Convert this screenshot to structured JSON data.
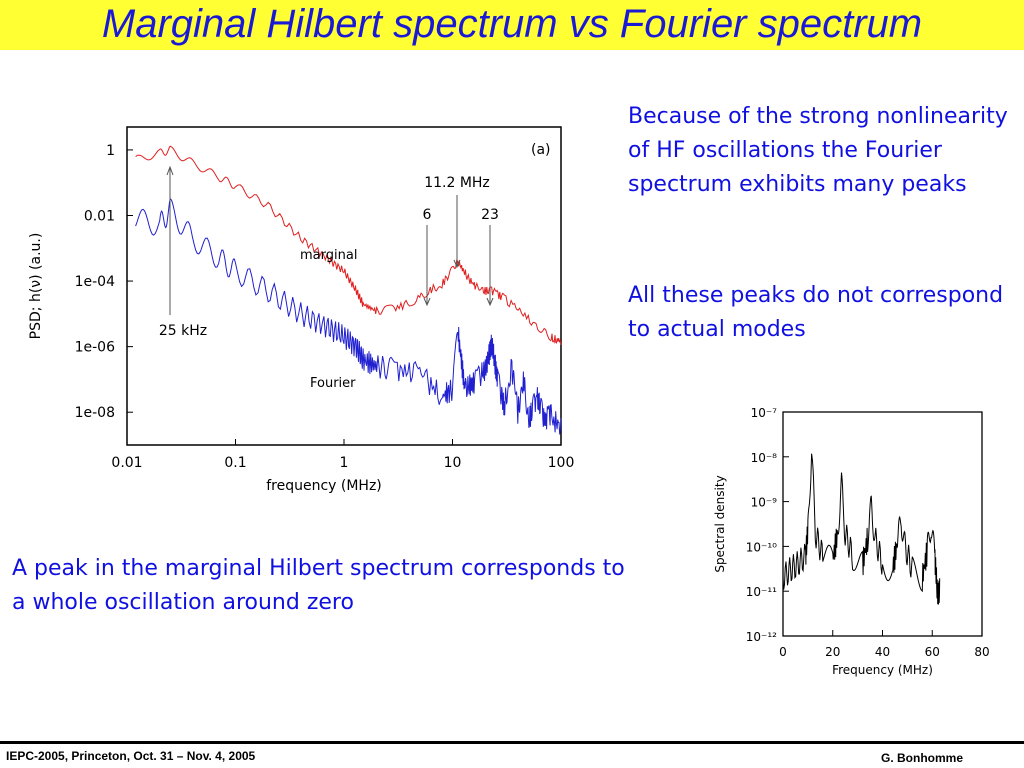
{
  "title": "Marginal Hilbert spectrum vs Fourier spectrum",
  "body": {
    "para1": "Because of the strong nonlinearity of HF oscillations the Fourier spectrum exhibits many peaks",
    "para2": "All these peaks do not correspond to actual modes",
    "para3": "A peak in the marginal Hilbert spectrum corresponds to a whole oscillation around zero"
  },
  "footer": {
    "left": "IEPC-2005, Princeton, Oct. 31 – Nov. 4, 2005",
    "right": "G. Bonhomme"
  },
  "colors": {
    "title_bg": "#ffff33",
    "title_text": "#1a1ad6",
    "body_text": "#1010e0",
    "marginal": "#e02020",
    "fourier": "#2020d0"
  },
  "chart_data": [
    {
      "type": "line",
      "panel_label": "(a)",
      "xlabel": "frequency (MHz)",
      "ylabel": "PSD;  h(ν)  (a.u.)",
      "xscale": "log",
      "yscale": "log",
      "xlim": [
        0.01,
        100
      ],
      "ylim": [
        1e-09,
        5
      ],
      "xticks": [
        "0.01",
        "0.1",
        "1",
        "10",
        "100"
      ],
      "yticks": [
        "1",
        "0.01",
        "1e-04",
        "1e-06",
        "1e-08"
      ],
      "annotations": [
        "11.2 MHz",
        "6",
        "23",
        "25 kHz"
      ],
      "series": [
        {
          "name": "marginal",
          "color": "#e02020",
          "x": [
            0.012,
            0.02,
            0.025,
            0.04,
            0.07,
            0.1,
            0.2,
            0.4,
            0.7,
            1.0,
            1.3,
            1.5,
            2,
            3,
            5,
            6,
            8,
            11.2,
            14,
            18,
            23,
            30,
            50,
            80,
            100
          ],
          "y": [
            0.5,
            0.8,
            1.0,
            0.4,
            0.15,
            0.08,
            0.02,
            0.002,
            0.0005,
            0.0002,
            5e-05,
            2e-05,
            1.2e-05,
            1.5e-05,
            3e-05,
            5e-05,
            8e-05,
            0.0004,
            0.00012,
            5e-05,
            5e-05,
            3e-05,
            7e-06,
            2e-06,
            1.5e-06
          ]
        },
        {
          "name": "Fourier",
          "color": "#2020d0",
          "x": [
            0.012,
            0.02,
            0.025,
            0.04,
            0.07,
            0.1,
            0.2,
            0.4,
            0.7,
            1.0,
            1.3,
            1.5,
            2,
            3,
            5,
            8,
            10,
            11.2,
            13,
            16,
            20,
            23,
            26,
            30,
            35,
            40,
            45,
            50,
            60,
            70,
            80,
            100
          ],
          "y": [
            0.008,
            0.005,
            0.015,
            0.002,
            0.0005,
            0.0002,
            5e-05,
            1e-05,
            4e-06,
            2e-06,
            1e-06,
            4e-07,
            2.5e-07,
            2e-07,
            1.5e-07,
            3e-08,
            5e-08,
            3e-06,
            5e-08,
            8e-08,
            2e-07,
            1.2e-06,
            1e-07,
            1.5e-08,
            2.5e-07,
            1e-08,
            1.2e-07,
            5e-09,
            3e-08,
            6e-09,
            8e-09,
            3e-09
          ]
        }
      ]
    },
    {
      "type": "line",
      "xlabel": "Frequency (MHz)",
      "ylabel": "Spectral  density",
      "yscale": "log",
      "xlim": [
        0,
        80
      ],
      "ylim": [
        1e-12,
        1e-07
      ],
      "xticks": [
        "0",
        "20",
        "40",
        "60",
        "80"
      ],
      "yticks": [
        "10⁻⁷",
        "10⁻⁸",
        "10⁻⁹",
        "10⁻¹⁰",
        "10⁻¹¹",
        "10⁻¹²"
      ],
      "series": [
        {
          "color": "#000000",
          "x": [
            0,
            3,
            6,
            9,
            10,
            11.5,
            13,
            16,
            20,
            22,
            23.5,
            25,
            28,
            32,
            34,
            35.5,
            37,
            40,
            44,
            46,
            47.5,
            49,
            52,
            56,
            58,
            59.5,
            61,
            62,
            63
          ],
          "y": [
            2e-11,
            3e-11,
            4e-11,
            6e-11,
            2e-10,
            1.5e-08,
            2e-10,
            6e-11,
            5e-11,
            2e-10,
            2.5e-09,
            2e-10,
            6e-11,
            4e-11,
            1.5e-10,
            8e-10,
            1.5e-10,
            4e-11,
            3e-11,
            1.2e-10,
            4e-10,
            1e-10,
            3e-11,
            2e-11,
            8e-11,
            3e-10,
            6e-11,
            1e-11,
            1e-11
          ]
        }
      ]
    }
  ]
}
